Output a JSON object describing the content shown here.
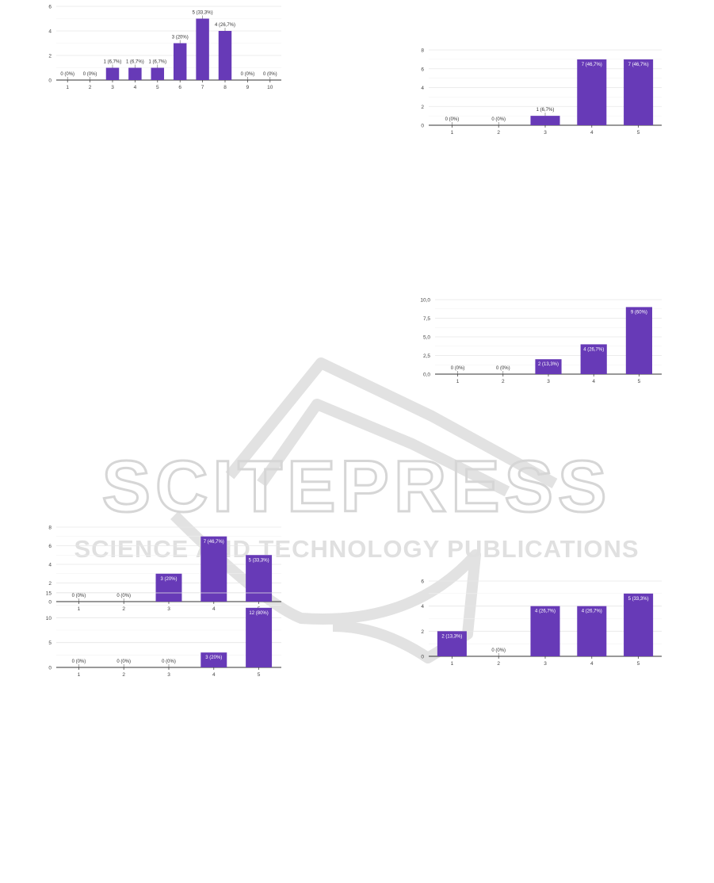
{
  "watermark": {
    "brand": "SCITEPRESS",
    "tagline": "SCIENCE AND TECHNOLOGY PUBLICATIONS"
  },
  "colors": {
    "bar": "#673ab7",
    "grid": "#e6e6e6",
    "axis": "#333333",
    "text": "#444444",
    "watermark": "#d6d6d6"
  },
  "chart_data": [
    {
      "id": "c1",
      "type": "bar",
      "categories": [
        "1",
        "2",
        "3",
        "4",
        "5",
        "6",
        "7",
        "8",
        "9",
        "10"
      ],
      "values": [
        0,
        0,
        1,
        1,
        1,
        3,
        5,
        4,
        0,
        0
      ],
      "labels": [
        "0 (0%)",
        "0 (0%)",
        "1 (6,7%)",
        "1 (6,7%)",
        "1 (6,7%)",
        "3 (20%)",
        "5 (33,3%)",
        "4 (26,7%)",
        "0 (0%)",
        "0 (0%)"
      ],
      "yticks": [
        "0",
        "2",
        "4",
        "6"
      ],
      "ylim": [
        0,
        6
      ],
      "grid": true
    },
    {
      "id": "c2",
      "type": "bar",
      "categories": [
        "1",
        "2",
        "3",
        "4",
        "5"
      ],
      "values": [
        0,
        0,
        1,
        7,
        7
      ],
      "labels": [
        "0 (0%)",
        "0 (0%)",
        "1 (6,7%)",
        "7 (46,7%)",
        "7 (46,7%)"
      ],
      "yticks": [
        "0",
        "2",
        "4",
        "6",
        "8"
      ],
      "ylim": [
        0,
        8
      ],
      "grid": true
    },
    {
      "id": "c3",
      "type": "bar",
      "categories": [
        "1",
        "2",
        "3",
        "4",
        "5"
      ],
      "values": [
        0,
        0,
        2,
        4,
        9
      ],
      "labels": [
        "0 (0%)",
        "0 (0%)",
        "2 (13,3%)",
        "4 (26,7%)",
        "9 (60%)"
      ],
      "yticks": [
        "0,0",
        "2,5",
        "5,0",
        "7,5",
        "10,0"
      ],
      "ylim": [
        0,
        10
      ],
      "grid": true
    },
    {
      "id": "c4",
      "type": "bar",
      "categories": [
        "1",
        "2",
        "3",
        "4",
        "5"
      ],
      "values": [
        0,
        0,
        3,
        7,
        5
      ],
      "labels": [
        "0 (0%)",
        "0 (0%)",
        "3 (20%)",
        "7 (46,7%)",
        "5 (33,3%)"
      ],
      "yticks": [
        "0",
        "2",
        "4",
        "6",
        "8"
      ],
      "ylim": [
        0,
        8
      ],
      "grid": true
    },
    {
      "id": "c5",
      "type": "bar",
      "categories": [
        "1",
        "2",
        "3",
        "4",
        "5"
      ],
      "values": [
        2,
        0,
        4,
        4,
        5
      ],
      "labels": [
        "2 (13,3%)",
        "0 (0%)",
        "4 (26,7%)",
        "4 (26,7%)",
        "5 (33,3%)"
      ],
      "yticks": [
        "0",
        "2",
        "4",
        "6"
      ],
      "ylim": [
        0,
        6
      ],
      "grid": true
    },
    {
      "id": "c6",
      "type": "bar",
      "categories": [
        "1",
        "2",
        "3",
        "4",
        "5"
      ],
      "values": [
        0,
        0,
        0,
        3,
        12
      ],
      "labels": [
        "0 (0%)",
        "0 (0%)",
        "0 (0%)",
        "3 (20%)",
        "12 (80%)"
      ],
      "yticks": [
        "0",
        "5",
        "10",
        "15"
      ],
      "ylim": [
        0,
        15
      ],
      "grid": true
    }
  ]
}
